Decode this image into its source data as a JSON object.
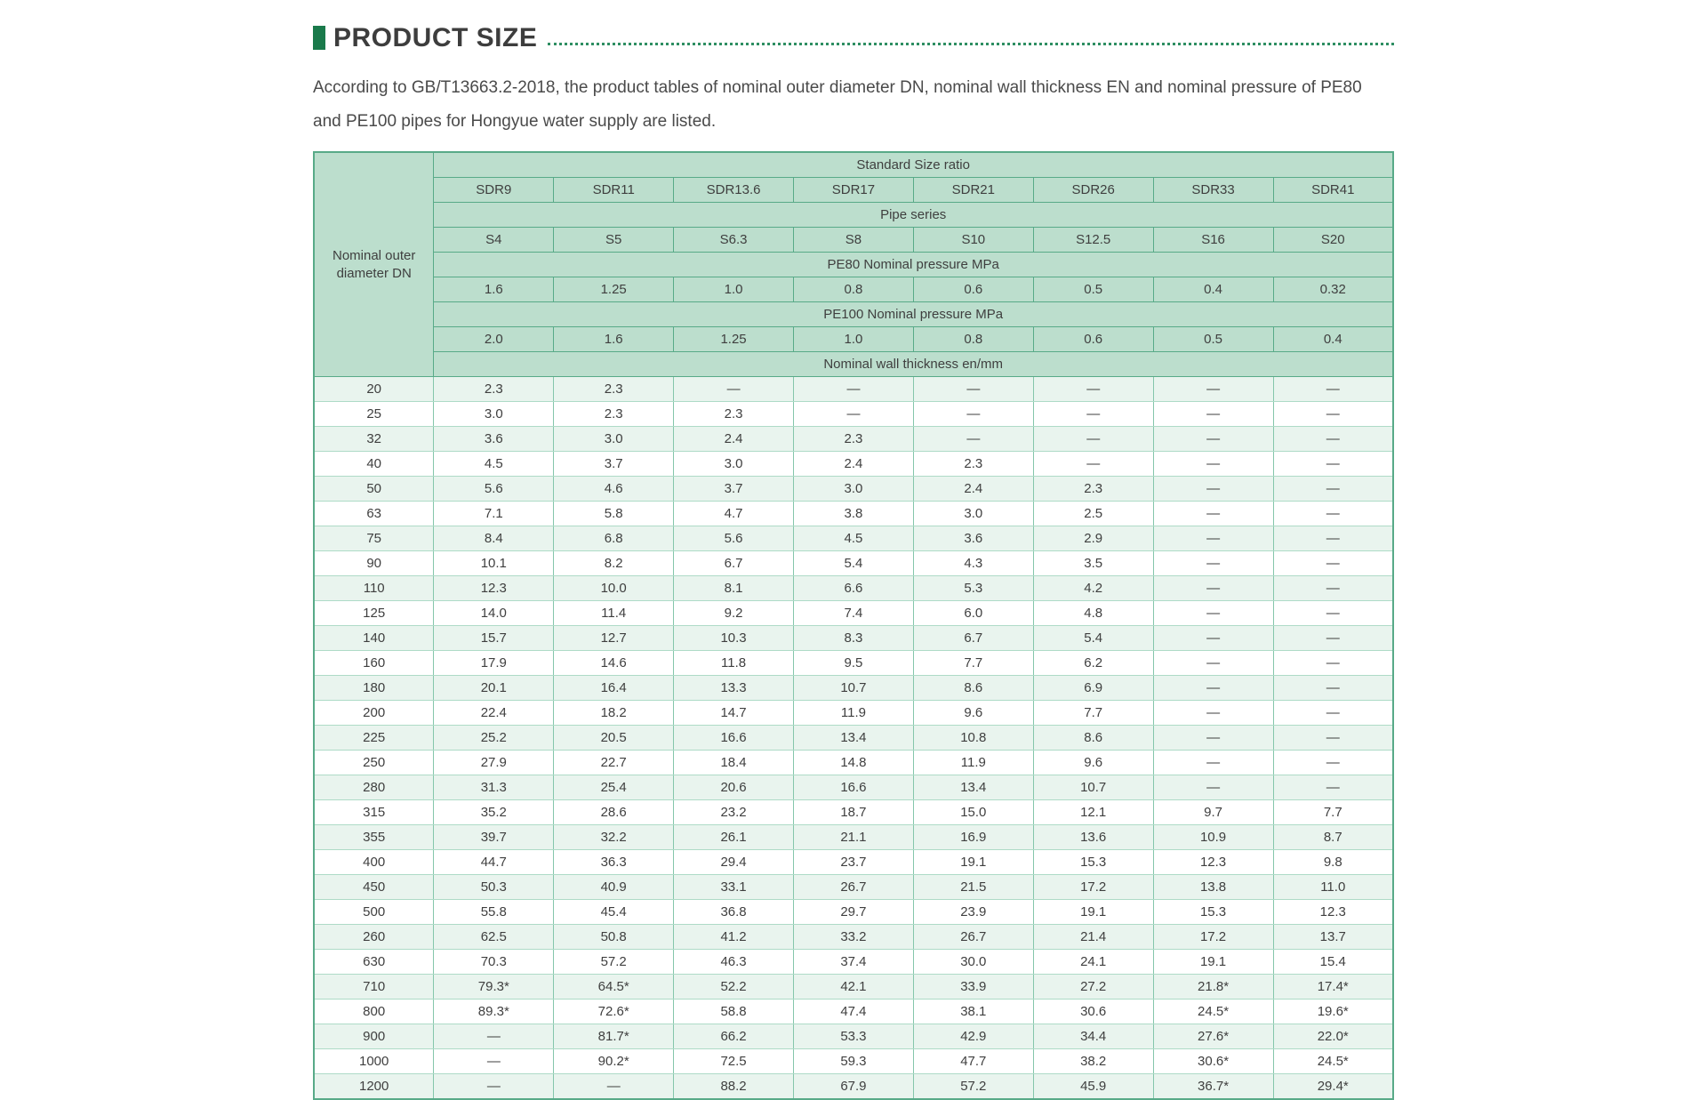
{
  "page": {
    "title": "PRODUCT SIZE",
    "description": "According to GB/T13663.2-2018, the product tables of nominal outer diameter DN, nominal wall thickness EN and nominal pressure of PE80 and PE100 pipes for Hongyue water supply are listed.",
    "colors": {
      "accent_green": "#1a7a4b",
      "dotted_line_green": "#2e8e62",
      "header_bg": "#bcdecd",
      "grid_line": "#58aa88",
      "row_tint": "#e9f4ee",
      "text": "#3f3f3f"
    }
  },
  "table": {
    "corner_header": "Nominal outer diameter DN",
    "band_headers": {
      "standard_size_ratio": "Standard Size ratio",
      "pipe_series": "Pipe series",
      "pe80_pressure": "PE80 Nominal pressure MPa",
      "pe100_pressure": "PE100 Nominal pressure MPa",
      "wall_thickness": "Nominal wall thickness en/mm"
    },
    "sdr_labels": [
      "SDR9",
      "SDR11",
      "SDR13.6",
      "SDR17",
      "SDR21",
      "SDR26",
      "SDR33",
      "SDR41"
    ],
    "series_labels": [
      "S4",
      "S5",
      "S6.3",
      "S8",
      "S10",
      "S12.5",
      "S16",
      "S20"
    ],
    "pe80_pressures": [
      "1.6",
      "1.25",
      "1.0",
      "0.8",
      "0.6",
      "0.5",
      "0.4",
      "0.32"
    ],
    "pe100_pressures": [
      "2.0",
      "1.6",
      "1.25",
      "1.0",
      "0.8",
      "0.6",
      "0.5",
      "0.4"
    ],
    "rows": [
      {
        "dn": "20",
        "values": [
          "2.3",
          "2.3",
          "—",
          "—",
          "—",
          "—",
          "—",
          "—"
        ]
      },
      {
        "dn": "25",
        "values": [
          "3.0",
          "2.3",
          "2.3",
          "—",
          "—",
          "—",
          "—",
          "—"
        ]
      },
      {
        "dn": "32",
        "values": [
          "3.6",
          "3.0",
          "2.4",
          "2.3",
          "—",
          "—",
          "—",
          "—"
        ]
      },
      {
        "dn": "40",
        "values": [
          "4.5",
          "3.7",
          "3.0",
          "2.4",
          "2.3",
          "—",
          "—",
          "—"
        ]
      },
      {
        "dn": "50",
        "values": [
          "5.6",
          "4.6",
          "3.7",
          "3.0",
          "2.4",
          "2.3",
          "—",
          "—"
        ]
      },
      {
        "dn": "63",
        "values": [
          "7.1",
          "5.8",
          "4.7",
          "3.8",
          "3.0",
          "2.5",
          "—",
          "—"
        ]
      },
      {
        "dn": "75",
        "values": [
          "8.4",
          "6.8",
          "5.6",
          "4.5",
          "3.6",
          "2.9",
          "—",
          "—"
        ]
      },
      {
        "dn": "90",
        "values": [
          "10.1",
          "8.2",
          "6.7",
          "5.4",
          "4.3",
          "3.5",
          "—",
          "—"
        ]
      },
      {
        "dn": "110",
        "values": [
          "12.3",
          "10.0",
          "8.1",
          "6.6",
          "5.3",
          "4.2",
          "—",
          "—"
        ]
      },
      {
        "dn": "125",
        "values": [
          "14.0",
          "11.4",
          "9.2",
          "7.4",
          "6.0",
          "4.8",
          "—",
          "—"
        ]
      },
      {
        "dn": "140",
        "values": [
          "15.7",
          "12.7",
          "10.3",
          "8.3",
          "6.7",
          "5.4",
          "—",
          "—"
        ]
      },
      {
        "dn": "160",
        "values": [
          "17.9",
          "14.6",
          "11.8",
          "9.5",
          "7.7",
          "6.2",
          "—",
          "—"
        ]
      },
      {
        "dn": "180",
        "values": [
          "20.1",
          "16.4",
          "13.3",
          "10.7",
          "8.6",
          "6.9",
          "—",
          "—"
        ]
      },
      {
        "dn": "200",
        "values": [
          "22.4",
          "18.2",
          "14.7",
          "11.9",
          "9.6",
          "7.7",
          "—",
          "—"
        ]
      },
      {
        "dn": "225",
        "values": [
          "25.2",
          "20.5",
          "16.6",
          "13.4",
          "10.8",
          "8.6",
          "—",
          "—"
        ]
      },
      {
        "dn": "250",
        "values": [
          "27.9",
          "22.7",
          "18.4",
          "14.8",
          "11.9",
          "9.6",
          "—",
          "—"
        ]
      },
      {
        "dn": "280",
        "values": [
          "31.3",
          "25.4",
          "20.6",
          "16.6",
          "13.4",
          "10.7",
          "—",
          "—"
        ]
      },
      {
        "dn": "315",
        "values": [
          "35.2",
          "28.6",
          "23.2",
          "18.7",
          "15.0",
          "12.1",
          "9.7",
          "7.7"
        ]
      },
      {
        "dn": "355",
        "values": [
          "39.7",
          "32.2",
          "26.1",
          "21.1",
          "16.9",
          "13.6",
          "10.9",
          "8.7"
        ]
      },
      {
        "dn": "400",
        "values": [
          "44.7",
          "36.3",
          "29.4",
          "23.7",
          "19.1",
          "15.3",
          "12.3",
          "9.8"
        ]
      },
      {
        "dn": "450",
        "values": [
          "50.3",
          "40.9",
          "33.1",
          "26.7",
          "21.5",
          "17.2",
          "13.8",
          "11.0"
        ]
      },
      {
        "dn": "500",
        "values": [
          "55.8",
          "45.4",
          "36.8",
          "29.7",
          "23.9",
          "19.1",
          "15.3",
          "12.3"
        ]
      },
      {
        "dn": "260",
        "values": [
          "62.5",
          "50.8",
          "41.2",
          "33.2",
          "26.7",
          "21.4",
          "17.2",
          "13.7"
        ]
      },
      {
        "dn": "630",
        "values": [
          "70.3",
          "57.2",
          "46.3",
          "37.4",
          "30.0",
          "24.1",
          "19.1",
          "15.4"
        ]
      },
      {
        "dn": "710",
        "values": [
          "79.3*",
          "64.5*",
          "52.2",
          "42.1",
          "33.9",
          "27.2",
          "21.8*",
          "17.4*"
        ]
      },
      {
        "dn": "800",
        "values": [
          "89.3*",
          "72.6*",
          "58.8",
          "47.4",
          "38.1",
          "30.6",
          "24.5*",
          "19.6*"
        ]
      },
      {
        "dn": "900",
        "values": [
          "—",
          "81.7*",
          "66.2",
          "53.3",
          "42.9",
          "34.4",
          "27.6*",
          "22.0*"
        ]
      },
      {
        "dn": "1000",
        "values": [
          "—",
          "90.2*",
          "72.5",
          "59.3",
          "47.7",
          "38.2",
          "30.6*",
          "24.5*"
        ]
      },
      {
        "dn": "1200",
        "values": [
          "—",
          "—",
          "88.2",
          "67.9",
          "57.2",
          "45.9",
          "36.7*",
          "29.4*"
        ]
      }
    ]
  }
}
